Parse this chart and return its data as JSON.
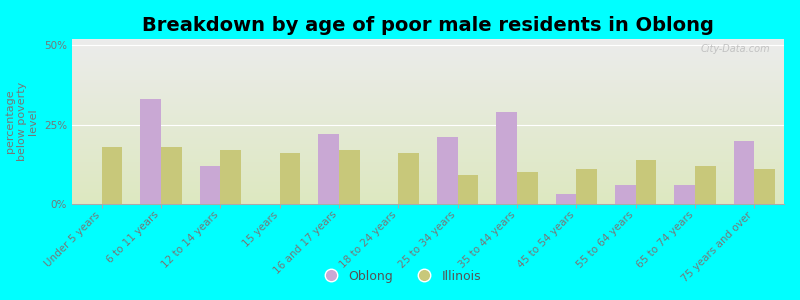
{
  "title": "Breakdown by age of poor male residents in Oblong",
  "ylabel": "percentage\nbelow poverty\nlevel",
  "categories": [
    "Under 5 years",
    "6 to 11 years",
    "12 to 14 years",
    "15 years",
    "16 and 17 years",
    "18 to 24 years",
    "25 to 34 years",
    "35 to 44 years",
    "45 to 54 years",
    "55 to 64 years",
    "65 to 74 years",
    "75 years and over"
  ],
  "oblong_values": [
    0,
    33,
    12,
    0,
    22,
    0,
    21,
    29,
    3,
    6,
    6,
    20
  ],
  "illinois_values": [
    18,
    18,
    17,
    16,
    17,
    16,
    9,
    10,
    11,
    14,
    12,
    11
  ],
  "oblong_color": "#c9a8d4",
  "illinois_color": "#c8c87a",
  "ylim": [
    0,
    52
  ],
  "yticks": [
    0,
    25,
    50
  ],
  "ytick_labels": [
    "0%",
    "25%",
    "50%"
  ],
  "bg_color": "#00ffff",
  "plot_bg_top": "#ececec",
  "plot_bg_bottom": "#dde8c0",
  "watermark": "City-Data.com",
  "bar_width": 0.35,
  "title_fontsize": 14,
  "tick_fontsize": 7.5,
  "ylabel_color": "#777777",
  "tick_color": "#777777"
}
